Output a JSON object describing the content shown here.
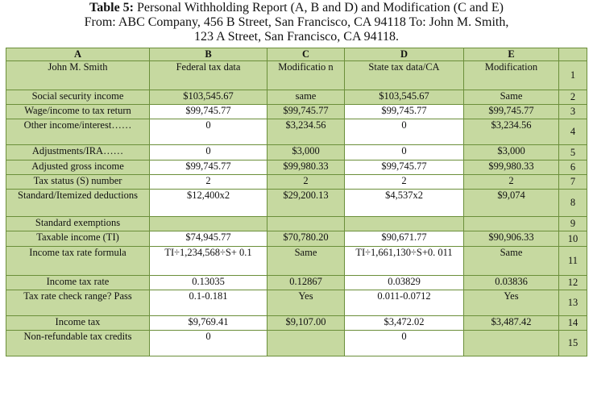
{
  "caption": {
    "label": "Table 5:",
    "text_line1": " Personal Withholding Report (A, B and D) and Modification (C and E)",
    "text_line2": "From: ABC Company, 456 B Street, San Francisco, CA 94118 To: John M. Smith,",
    "text_line3": "123 A Street, San Francisco, CA 94118."
  },
  "columns": [
    "A",
    "B",
    "C",
    "D",
    "E",
    ""
  ],
  "rows": [
    {
      "a": "John M. Smith",
      "b": "Federal tax data",
      "c": "Modificatio n",
      "d": "State tax data/CA",
      "e": "Modification",
      "n": "1"
    },
    {
      "a": "Social security income",
      "b": "$103,545.67",
      "c": "same",
      "d": "$103,545.67",
      "e": "Same",
      "n": "2"
    },
    {
      "a": "Wage/income to tax return",
      "b": "$99,745.77",
      "c": "$99,745.77",
      "d": "$99,745.77",
      "e": "$99,745.77",
      "n": "3"
    },
    {
      "a": "Other income/interest……",
      "b": "0",
      "c": "$3,234.56",
      "d": "0",
      "e": "$3,234.56",
      "n": "4"
    },
    {
      "a": "Adjustments/IRA……",
      "b": "0",
      "c": "$3,000",
      "d": "0",
      "e": "$3,000",
      "n": "5"
    },
    {
      "a": "Adjusted gross income",
      "b": "$99,745.77",
      "c": "$99,980.33",
      "d": "$99,745.77",
      "e": "$99,980.33",
      "n": "6"
    },
    {
      "a": "Tax status (S) number",
      "b": "2",
      "c": "2",
      "d": "2",
      "e": "2",
      "n": "7"
    },
    {
      "a": "Standard/Itemized deductions",
      "b": "$12,400x2",
      "c": "$29,200.13",
      "d": "$4,537x2",
      "e": "$9,074",
      "n": "8"
    },
    {
      "a": "Standard exemptions",
      "b": "",
      "c": "",
      "d": "",
      "e": "",
      "n": "9"
    },
    {
      "a": "Taxable income (TI)",
      "b": "$74,945.77",
      "c": "$70,780.20",
      "d": "$90,671.77",
      "e": "$90,906.33",
      "n": "10"
    },
    {
      "a": "Income tax rate formula",
      "b": "TI÷1,234,568÷S+ 0.1",
      "c": "Same",
      "d": "TI÷1,661,130÷S+0. 011",
      "e": "Same",
      "n": "11"
    },
    {
      "a": "Income tax rate",
      "b": "0.13035",
      "c": "0.12867",
      "d": "0.03829",
      "e": "0.03836",
      "n": "12"
    },
    {
      "a": "Tax rate check range? Pass",
      "b": "0.1-0.181",
      "c": "Yes",
      "d": "0.011-0.0712",
      "e": "Yes",
      "n": "13"
    },
    {
      "a": "Income tax",
      "b": "$9,769.41",
      "c": "$9,107.00",
      "d": "$3,472.02",
      "e": "$3,487.42",
      "n": "14"
    },
    {
      "a": "Non-refundable tax credits",
      "b": "0",
      "c": "",
      "d": "0",
      "e": "",
      "n": "15"
    }
  ]
}
